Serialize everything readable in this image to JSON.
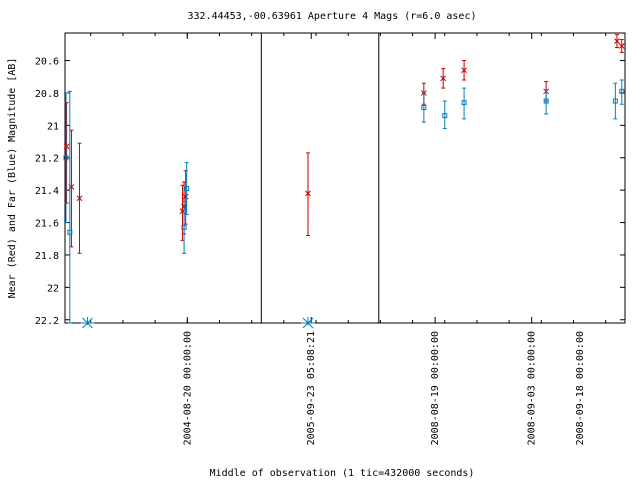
{
  "chart_data": {
    "type": "scatter",
    "title": "332.44453,-00.63961   Aperture 4 Mags (r=6.0 asec)",
    "xlabel": "Middle of observation (1 tic=432000 seconds)",
    "ylabel": "Near (Red) and Far (Blue) Magnitude [AB]",
    "ylim": [
      22.22,
      20.43
    ],
    "y_inverted": true,
    "y_ticks": [
      "20.6",
      "20.8",
      "21",
      "21.2",
      "21.4",
      "21.6",
      "21.8",
      "22",
      "22.2"
    ],
    "x_tick_labels": [
      "2004-08-20 00:00:00",
      "2005-09-23 05:08:21",
      "2008-08-19 00:00:00",
      "2008-09-03 00:00:00",
      "2008-09-18 00:00:00"
    ],
    "x_units": "tics of 432000 seconds from the left edge of the plot",
    "panels": [
      {
        "x_range": [
          0,
          6.1
        ],
        "tick_label_index": [
          0
        ],
        "tick_positions": [
          3.8
        ]
      },
      {
        "x_range": [
          6.1,
          9.75
        ],
        "tick_label_index": [
          1
        ],
        "tick_positions": [
          7.65
        ]
      },
      {
        "x_range": [
          9.75,
          17.4
        ],
        "tick_label_index": [
          2,
          3,
          4
        ],
        "tick_positions": [
          11.5,
          14.5,
          17.5
        ]
      }
    ],
    "grid": false,
    "series": [
      {
        "color": "#cc0000",
        "marker": "x",
        "points": [
          {
            "x": 0.05,
            "y": 21.13,
            "err": [
              20.86,
              21.48
            ]
          },
          {
            "x": 0.2,
            "y": 21.38,
            "err": [
              21.03,
              21.75
            ]
          },
          {
            "x": 0.45,
            "y": 21.45,
            "err": [
              21.11,
              21.79
            ]
          },
          {
            "x": 3.65,
            "y": 21.53,
            "err": [
              21.37,
              21.71
            ]
          },
          {
            "x": 3.7,
            "y": 21.5,
            "err": [
              21.35,
              21.67
            ]
          },
          {
            "x": 3.75,
            "y": 21.44,
            "err": [
              21.28,
              21.61
            ]
          },
          {
            "x": 7.55,
            "y": 21.42,
            "err": [
              21.17,
              21.68
            ]
          },
          {
            "x": 11.15,
            "y": 20.8,
            "err": [
              20.74,
              20.87
            ]
          },
          {
            "x": 11.75,
            "y": 20.71,
            "err": [
              20.65,
              20.77
            ]
          },
          {
            "x": 12.4,
            "y": 20.66,
            "err": [
              20.6,
              20.72
            ]
          },
          {
            "x": 14.95,
            "y": 20.79,
            "err": [
              20.73,
              20.85
            ]
          },
          {
            "x": 17.15,
            "y": 20.48,
            "err": [
              20.44,
              20.52
            ]
          },
          {
            "x": 17.3,
            "y": 20.51,
            "err": [
              20.47,
              20.55
            ]
          }
        ]
      },
      {
        "color": "#0080c0",
        "marker": "square",
        "points": [
          {
            "x": 0.03,
            "y": 21.2,
            "err": [
              20.8,
              21.6
            ]
          },
          {
            "x": 0.15,
            "y": 21.66,
            "err": [
              20.79,
              22.22
            ]
          },
          {
            "x": 3.7,
            "y": 21.63,
            "err": [
              21.47,
              21.79
            ]
          },
          {
            "x": 3.78,
            "y": 21.39,
            "err": [
              21.23,
              21.55
            ]
          },
          {
            "x": 11.15,
            "y": 20.89,
            "err": [
              20.8,
              20.98
            ]
          },
          {
            "x": 11.8,
            "y": 20.94,
            "err": [
              20.85,
              21.02
            ]
          },
          {
            "x": 12.4,
            "y": 20.86,
            "err": [
              20.77,
              20.96
            ]
          },
          {
            "x": 14.95,
            "y": 20.85,
            "err": [
              20.78,
              20.93
            ]
          },
          {
            "x": 17.1,
            "y": 20.85,
            "err": [
              20.74,
              20.96
            ]
          },
          {
            "x": 17.3,
            "y": 20.79,
            "err": [
              20.72,
              20.87
            ]
          }
        ],
        "limit_markers": [
          {
            "x": 0.7,
            "y": 22.22
          },
          {
            "x": 7.55,
            "y": 22.22
          }
        ]
      }
    ]
  }
}
